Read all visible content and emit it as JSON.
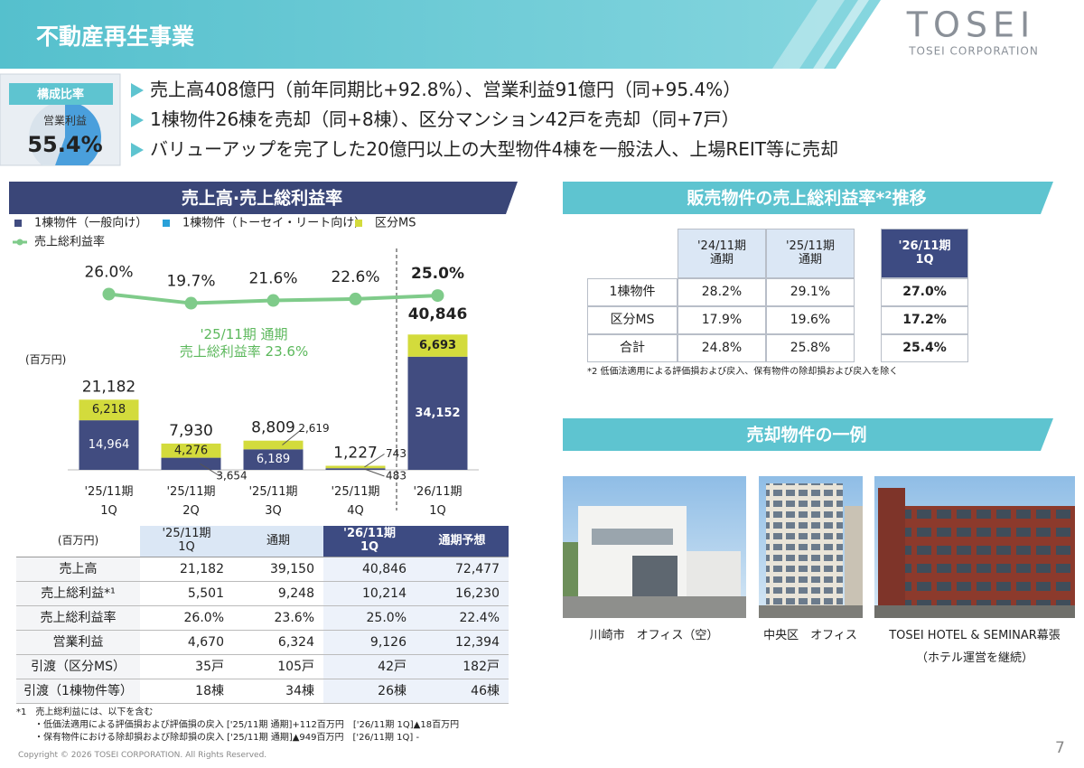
{
  "header": {
    "title": "不動産再生事業",
    "logo": "TOSEI",
    "logo_sub": "TOSEI CORPORATION"
  },
  "bullets": [
    "売上高408億円（前年同期比+92.8%）、営業利益91億円（同+95.4%）",
    "1棟物件26棟を売却（同+8棟）、区分マンション42戸を売却（同+7戸）",
    "バリューアップを完了した20億円以上の大型物件4棟を一般法人、上場REIT等に売却"
  ],
  "chart_data": [
    {
      "type": "pie",
      "title": "構成比率",
      "categories": [
        "営業利益"
      ],
      "values": [
        55.4
      ],
      "value_labels": [
        "55.4%"
      ],
      "color": "#4a9fdc"
    },
    {
      "type": "bar",
      "stacked": true,
      "title": "売上高·売上総利益率",
      "unit_label": "(百万円)",
      "categories": [
        "'25/11期\n1Q",
        "'25/11期\n2Q",
        "'25/11期\n3Q",
        "'25/11期\n4Q",
        "'26/11期\n1Q"
      ],
      "series": [
        {
          "name": "1棟物件（一般向け）",
          "color": "#414c80",
          "values": [
            14964,
            3654,
            6189,
            483,
            34152
          ],
          "value_labels": [
            "14,964",
            "3,654",
            "6,189",
            "483",
            "34,152"
          ]
        },
        {
          "name": "1棟物件（トーセイ・リート向け）",
          "color": "#2aa1d9",
          "values": [
            null,
            null,
            null,
            null,
            null
          ]
        },
        {
          "name": "区分MS",
          "color": "#d3db3c",
          "values": [
            6218,
            4276,
            2619,
            743,
            6693
          ],
          "value_labels": [
            "6,218",
            "4,276",
            "2,619",
            "743",
            "6,693"
          ]
        },
        {
          "name": "売上総利益率",
          "type": "line",
          "axis": "y2",
          "color": "#7fcb8a",
          "values": [
            26.0,
            19.7,
            21.6,
            22.6,
            25.0
          ],
          "value_labels": [
            "26.0%",
            "19.7%",
            "21.6%",
            "22.6%",
            "25.0%"
          ]
        }
      ],
      "totals": [
        21182,
        7930,
        8809,
        1227,
        40846
      ],
      "total_labels": [
        "21,182",
        "7,930",
        "8,809",
        "1,227",
        "40,846"
      ],
      "ylim": [
        0,
        60000
      ],
      "y2lim": [
        -96,
        42
      ],
      "annotation": "'25/11期 通期\n売上総利益率 23.6%"
    }
  ],
  "table": {
    "unit": "(百万円)",
    "columns": [
      "'25/11期\n1Q",
      "通期",
      "'26/11期\n1Q",
      "通期予想"
    ],
    "rows": [
      [
        "売上高",
        "21,182",
        "39,150",
        "40,846",
        "72,477"
      ],
      [
        "売上総利益*¹",
        "5,501",
        "9,248",
        "10,214",
        "16,230"
      ],
      [
        "売上総利益率",
        "26.0%",
        "23.6%",
        "25.0%",
        "22.4%"
      ],
      [
        "営業利益",
        "4,670",
        "6,324",
        "9,126",
        "12,394"
      ],
      [
        "引渡（区分MS）",
        "35戸",
        "105戸",
        "42戸",
        "182戸"
      ],
      [
        "引渡（1棟物件等）",
        "18棟",
        "34棟",
        "26棟",
        "46棟"
      ]
    ]
  },
  "notes": [
    "*1　売上総利益には、以下を含む",
    "・低価法適用による評価損および評価損の戻入 ['25/11期 通期]+112百万円　['26/11期 1Q]▲18百万円",
    "・保有物件における除却損および除却損の戻入 ['25/11期 通期]▲949百万円　['26/11期 1Q] -"
  ],
  "margin_table": {
    "title": "販売物件の売上総利益率*²推移",
    "columns": [
      "'24/11期\n通期",
      "'25/11期\n通期",
      "'26/11期\n1Q"
    ],
    "rows": [
      [
        "1棟物件",
        "28.2%",
        "29.1%",
        "27.0%"
      ],
      [
        "区分MS",
        "17.9%",
        "19.6%",
        "17.2%"
      ],
      [
        "合計",
        "24.8%",
        "25.8%",
        "25.4%"
      ]
    ],
    "note": "*2 低価法適用による評価損および戻入、保有物件の除却損および戻入を除く"
  },
  "examples": {
    "title": "売却物件の一例",
    "captions": [
      "川崎市　オフィス（空）",
      "中央区　オフィス",
      "TOSEI HOTEL & SEMINAR幕張\n（ホテル運営を継続）"
    ]
  },
  "footer": {
    "copyright": "Copyright © 2026 TOSEI CORPORATION. All Rights Reserved.",
    "page": "7"
  }
}
